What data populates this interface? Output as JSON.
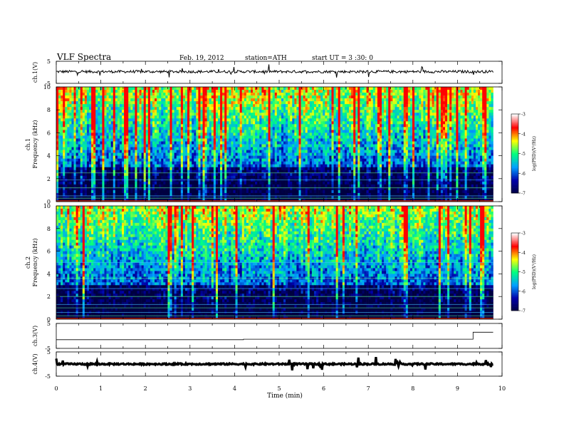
{
  "header": {
    "title": "VLF Spectra",
    "date": "Feb. 19, 2012",
    "station": "station=ATH",
    "start_ut": "start UT = 3 :30: 0"
  },
  "colorbar_label": "log(PSD)(V²/Hz)",
  "chart_data": [
    {
      "type": "line",
      "name": "ch1-waveform",
      "ylabel": "ch.1(V)",
      "ylim": [
        -5,
        5
      ],
      "yticks": [
        "5",
        "-5"
      ],
      "baseline": 0.3,
      "noise_amplitude": 0.6,
      "color": "#000000"
    },
    {
      "type": "heatmap",
      "name": "ch1-spectrogram",
      "ylabel": "Frequency (kHz)",
      "channel": "ch.1",
      "ylim": [
        0,
        10
      ],
      "yticks": [
        "0",
        "2",
        "4",
        "6",
        "8",
        "10"
      ],
      "colorbar": {
        "range": [
          -7,
          -3
        ],
        "ticks": [
          "-3",
          "-4",
          "-5",
          "-6",
          "-7"
        ]
      },
      "colors": [
        "#000040",
        "#0000aa",
        "#00a0ff",
        "#00ff80",
        "#ffff00",
        "#ff0000"
      ]
    },
    {
      "type": "heatmap",
      "name": "ch2-spectrogram",
      "ylabel": "Frequency (kHz)",
      "channel": "ch.2",
      "ylim": [
        0,
        10
      ],
      "yticks": [
        "0",
        "2",
        "4",
        "6",
        "8",
        "10"
      ],
      "colorbar": {
        "range": [
          -7,
          -3
        ],
        "ticks": [
          "-3",
          "-4",
          "-5",
          "-6",
          "-7"
        ]
      },
      "colors": [
        "#000040",
        "#0000aa",
        "#00a0ff",
        "#00ff80",
        "#ffff00",
        "#ff0000"
      ]
    },
    {
      "type": "line",
      "name": "ch3-waveform",
      "ylabel": "ch.3(V)",
      "ylim": [
        -5,
        5
      ],
      "yticks": [
        "5",
        "-5"
      ],
      "x": [
        0,
        4.2,
        4.2,
        9.35,
        9.35,
        9.8
      ],
      "y": [
        -1.5,
        -1.5,
        -1.3,
        -1.3,
        1.5,
        1.5
      ],
      "color": "#000000"
    },
    {
      "type": "line",
      "name": "ch4-waveform",
      "ylabel": "ch.4(V)",
      "ylim": [
        -5,
        5
      ],
      "yticks": [
        "5",
        "-5"
      ],
      "baseline": 0,
      "noise_amplitude": 0.3,
      "color": "#000000"
    }
  ],
  "x_axis": {
    "label": "Time (min)",
    "xlim": [
      0,
      10
    ],
    "data_end": 9.8,
    "ticks": [
      "0",
      "1",
      "2",
      "3",
      "4",
      "5",
      "6",
      "7",
      "8",
      "9",
      "10"
    ]
  }
}
